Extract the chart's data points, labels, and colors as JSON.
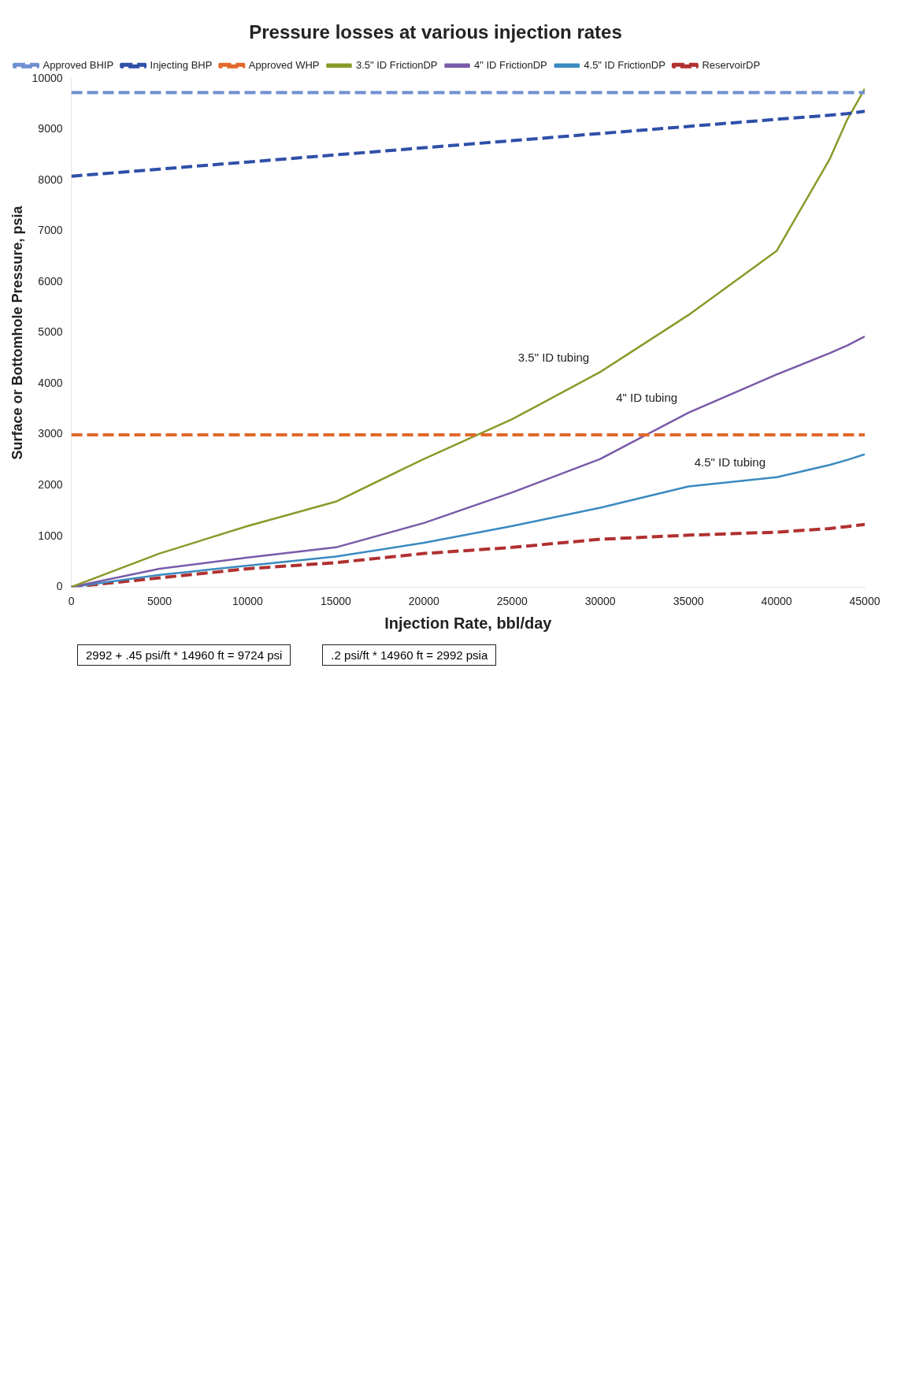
{
  "chart_data": {
    "type": "line",
    "title": "Pressure losses at various injection rates",
    "xlabel": "Injection Rate, bbl/day",
    "ylabel": "Surface or Bottomhole Pressure, psia",
    "x": [
      0,
      5000,
      10000,
      15000,
      20000,
      25000,
      30000,
      35000,
      40000,
      43000,
      44000,
      45000
    ],
    "series": [
      {
        "name": "Approved BHIP",
        "color": "#6f8fd0",
        "line_style": "dashed",
        "values": [
          9724,
          9724,
          9724,
          9724,
          9724,
          9724,
          9724,
          9724,
          9724,
          9724,
          9724,
          9724
        ]
      },
      {
        "name": "Injecting BHP",
        "color": "#2f4fa8",
        "line_style": "dashed",
        "values": [
          8080,
          8220,
          8360,
          8500,
          8640,
          8780,
          8920,
          9060,
          9200,
          9280,
          9310,
          9360
        ]
      },
      {
        "name": "Approved WHP",
        "color": "#e0682a",
        "line_style": "dashed",
        "values": [
          2992,
          2992,
          2992,
          2992,
          2992,
          2992,
          2992,
          2992,
          2992,
          2992,
          2992,
          2992
        ]
      },
      {
        "name": "3.5\" ID FrictionDP",
        "color": "#8a9a2a",
        "line_style": "solid",
        "values": [
          0,
          660,
          1200,
          1680,
          2520,
          3300,
          4230,
          5350,
          6610,
          8410,
          9190,
          9800
        ]
      },
      {
        "name": "4\" ID FrictionDP",
        "color": "#7a5aa8",
        "line_style": "solid",
        "values": [
          0,
          360,
          580,
          780,
          1260,
          1860,
          2520,
          3430,
          4180,
          4600,
          4750,
          4930
        ]
      },
      {
        "name": "4.5\" ID FrictionDP",
        "color": "#3a8ac0",
        "line_style": "solid",
        "values": [
          0,
          240,
          420,
          600,
          870,
          1200,
          1560,
          1980,
          2160,
          2400,
          2500,
          2610
        ]
      },
      {
        "name": "ReservoirDP",
        "color": "#b03030",
        "line_style": "dashed",
        "values": [
          0,
          180,
          360,
          480,
          660,
          780,
          940,
          1020,
          1080,
          1150,
          1190,
          1230
        ]
      }
    ],
    "xlim": [
      0,
      45000
    ],
    "xticks": [
      0,
      5000,
      10000,
      15000,
      20000,
      25000,
      30000,
      35000,
      40000,
      45000
    ],
    "ylim": [
      0,
      10000
    ],
    "yticks": [
      0,
      1000,
      2000,
      3000,
      4000,
      5000,
      6000,
      7000,
      8000,
      9000,
      10000
    ],
    "grid": false,
    "legend": "top left",
    "marker": "none",
    "annotations": [
      "2992 + .45 psi/ft * 14960 ft = 9724 psi",
      ".2 psi/ft * 14960 ft = 2992 psia",
      {
        "text": "3.5\" ID tubing",
        "x": 30000,
        "y": 4230
      },
      {
        "text": "4\" ID tubing",
        "x": 35000,
        "y": 3430
      },
      {
        "text": "4.5\" ID tubing",
        "x": 40000,
        "y": 2160
      }
    ]
  }
}
